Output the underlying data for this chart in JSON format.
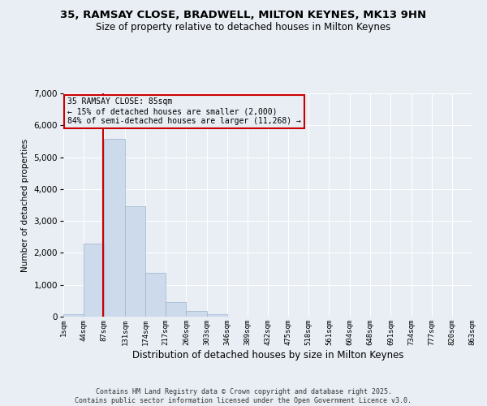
{
  "title": "35, RAMSAY CLOSE, BRADWELL, MILTON KEYNES, MK13 9HN",
  "subtitle": "Size of property relative to detached houses in Milton Keynes",
  "xlabel": "Distribution of detached houses by size in Milton Keynes",
  "ylabel": "Number of detached properties",
  "bar_color": "#ccdaeb",
  "bar_edge_color": "#9ab5cc",
  "property_line_color": "#cc0000",
  "property_line_x": 85,
  "annotation_title": "35 RAMSAY CLOSE: 85sqm",
  "annotation_line1": "← 15% of detached houses are smaller (2,000)",
  "annotation_line2": "84% of semi-detached houses are larger (11,268) →",
  "annotation_box_color": "#cc0000",
  "footer1": "Contains HM Land Registry data © Crown copyright and database right 2025.",
  "footer2": "Contains public sector information licensed under the Open Government Licence v3.0.",
  "bin_edges": [
    1,
    44,
    87,
    131,
    174,
    217,
    260,
    303,
    346,
    389,
    432,
    475,
    518,
    561,
    604,
    648,
    691,
    734,
    777,
    820,
    863
  ],
  "bin_heights": [
    70,
    2300,
    5570,
    3450,
    1380,
    460,
    170,
    80,
    10,
    0,
    0,
    0,
    0,
    0,
    0,
    0,
    0,
    0,
    0,
    0
  ],
  "ylim": [
    0,
    7000
  ],
  "yticks": [
    0,
    1000,
    2000,
    3000,
    4000,
    5000,
    6000,
    7000
  ],
  "background_color": "#e8eef4",
  "grid_color": "#ffffff",
  "tick_labels": [
    "1sqm",
    "44sqm",
    "87sqm",
    "131sqm",
    "174sqm",
    "217sqm",
    "260sqm",
    "303sqm",
    "346sqm",
    "389sqm",
    "432sqm",
    "475sqm",
    "518sqm",
    "561sqm",
    "604sqm",
    "648sqm",
    "691sqm",
    "734sqm",
    "777sqm",
    "820sqm",
    "863sqm"
  ]
}
